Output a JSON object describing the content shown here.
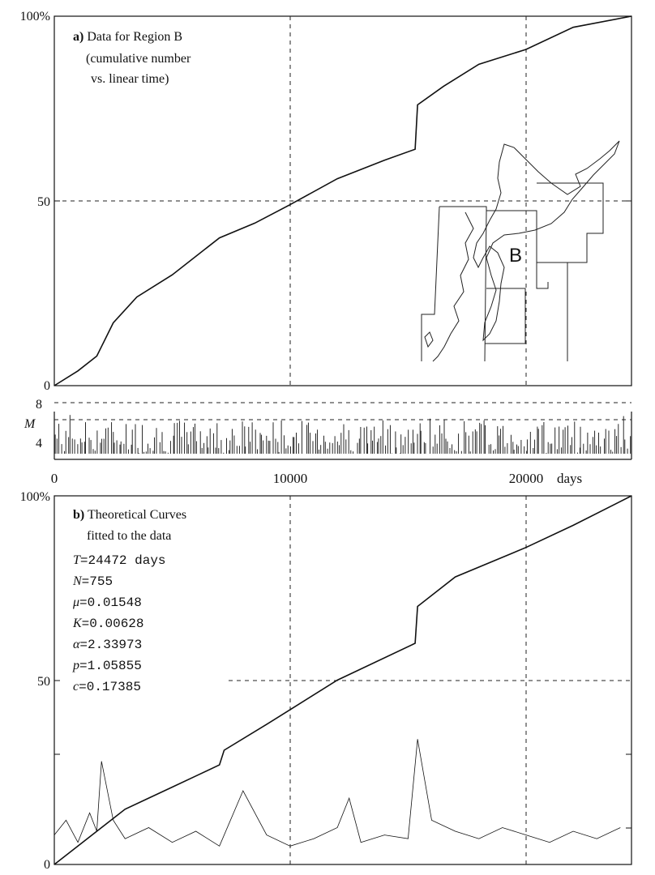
{
  "panel_a": {
    "title_bold": "a)",
    "title_rest": "Data for Region B",
    "subtitle_1": "(cumulative number",
    "subtitle_2": "vs. linear time)",
    "y_ticks": [
      "0",
      "50",
      "100%"
    ],
    "map_label": "B",
    "colors": {
      "curve": "#111111",
      "grid": "#222222",
      "map": "#222222"
    }
  },
  "magnitude_panel": {
    "y_label": "M",
    "y_ticks": [
      "4",
      "8"
    ]
  },
  "x_axis": {
    "tick_labels": [
      "0",
      "10000",
      "20000"
    ],
    "unit": "days"
  },
  "panel_b": {
    "title_bold": "b)",
    "title_rest": "Theoretical Curves",
    "subtitle": "fitted to the data",
    "params": [
      {
        "sym": "T",
        "value": "24472 days"
      },
      {
        "sym": "N",
        "value": "755"
      },
      {
        "sym": "μ",
        "value": "0.01548"
      },
      {
        "sym": "K",
        "value": "0.00628"
      },
      {
        "sym": "α",
        "value": "2.33973"
      },
      {
        "sym": "p",
        "value": "1.05855"
      },
      {
        "sym": "c",
        "value": "0.17385"
      }
    ],
    "y_ticks": [
      "0",
      "50",
      "100%"
    ]
  },
  "chart_data": [
    {
      "type": "line",
      "title": "Data for Region B",
      "xlim": [
        0,
        24472
      ],
      "ylim": [
        0,
        100
      ],
      "x_ticks": [
        0,
        10000,
        20000
      ],
      "y_ticks": [
        0,
        50,
        100
      ],
      "grid": "dashed",
      "series": [
        {
          "x": [
            0,
            1000,
            1800,
            2500,
            3500,
            5000,
            7000,
            8500,
            10000,
            12000,
            14000,
            15300,
            15400,
            16500,
            18000,
            20000,
            22000,
            24472
          ],
          "values": [
            0,
            4,
            8,
            17,
            24,
            30,
            40,
            44,
            49,
            56,
            61,
            64,
            76,
            81,
            87,
            91,
            97,
            100
          ]
        }
      ]
    },
    {
      "type": "bar",
      "ylabel": "M",
      "xlim": [
        0,
        24472
      ],
      "ylim": [
        3,
        8
      ],
      "y_ticks": [
        4,
        8
      ],
      "baseline": 3.5,
      "typical_max": 6.5
    },
    {
      "type": "line",
      "title": "Theoretical Curves",
      "xlim": [
        0,
        24472
      ],
      "ylim": [
        0,
        100
      ],
      "x_ticks": [
        0,
        10000,
        20000
      ],
      "y_ticks": [
        0,
        50,
        100
      ],
      "grid": "dashed",
      "series": [
        {
          "x": [
            0,
            1000,
            2000,
            3000,
            4000,
            5000,
            6000,
            7000,
            7200,
            9000,
            10000,
            12000,
            15300,
            15400,
            17000,
            20000,
            22000,
            24472
          ],
          "values": [
            0,
            5,
            10,
            15,
            18,
            21,
            24,
            27,
            31,
            38,
            42,
            50,
            60,
            70,
            78,
            86,
            92,
            100
          ]
        },
        {
          "x": [
            0,
            500,
            1000,
            1500,
            1800,
            2000,
            2500,
            3000,
            4000,
            5000,
            6000,
            7000,
            8000,
            9000,
            10000,
            11000,
            12000,
            12500,
            13000,
            14000,
            15000,
            15400,
            16000,
            17000,
            18000,
            19000,
            20000,
            21000,
            22000,
            23000,
            24000
          ],
          "values": [
            8,
            12,
            6,
            14,
            9,
            28,
            12,
            7,
            10,
            6,
            9,
            5,
            20,
            8,
            5,
            7,
            10,
            18,
            6,
            8,
            7,
            34,
            12,
            9,
            7,
            10,
            8,
            6,
            9,
            7,
            10
          ]
        }
      ]
    }
  ]
}
